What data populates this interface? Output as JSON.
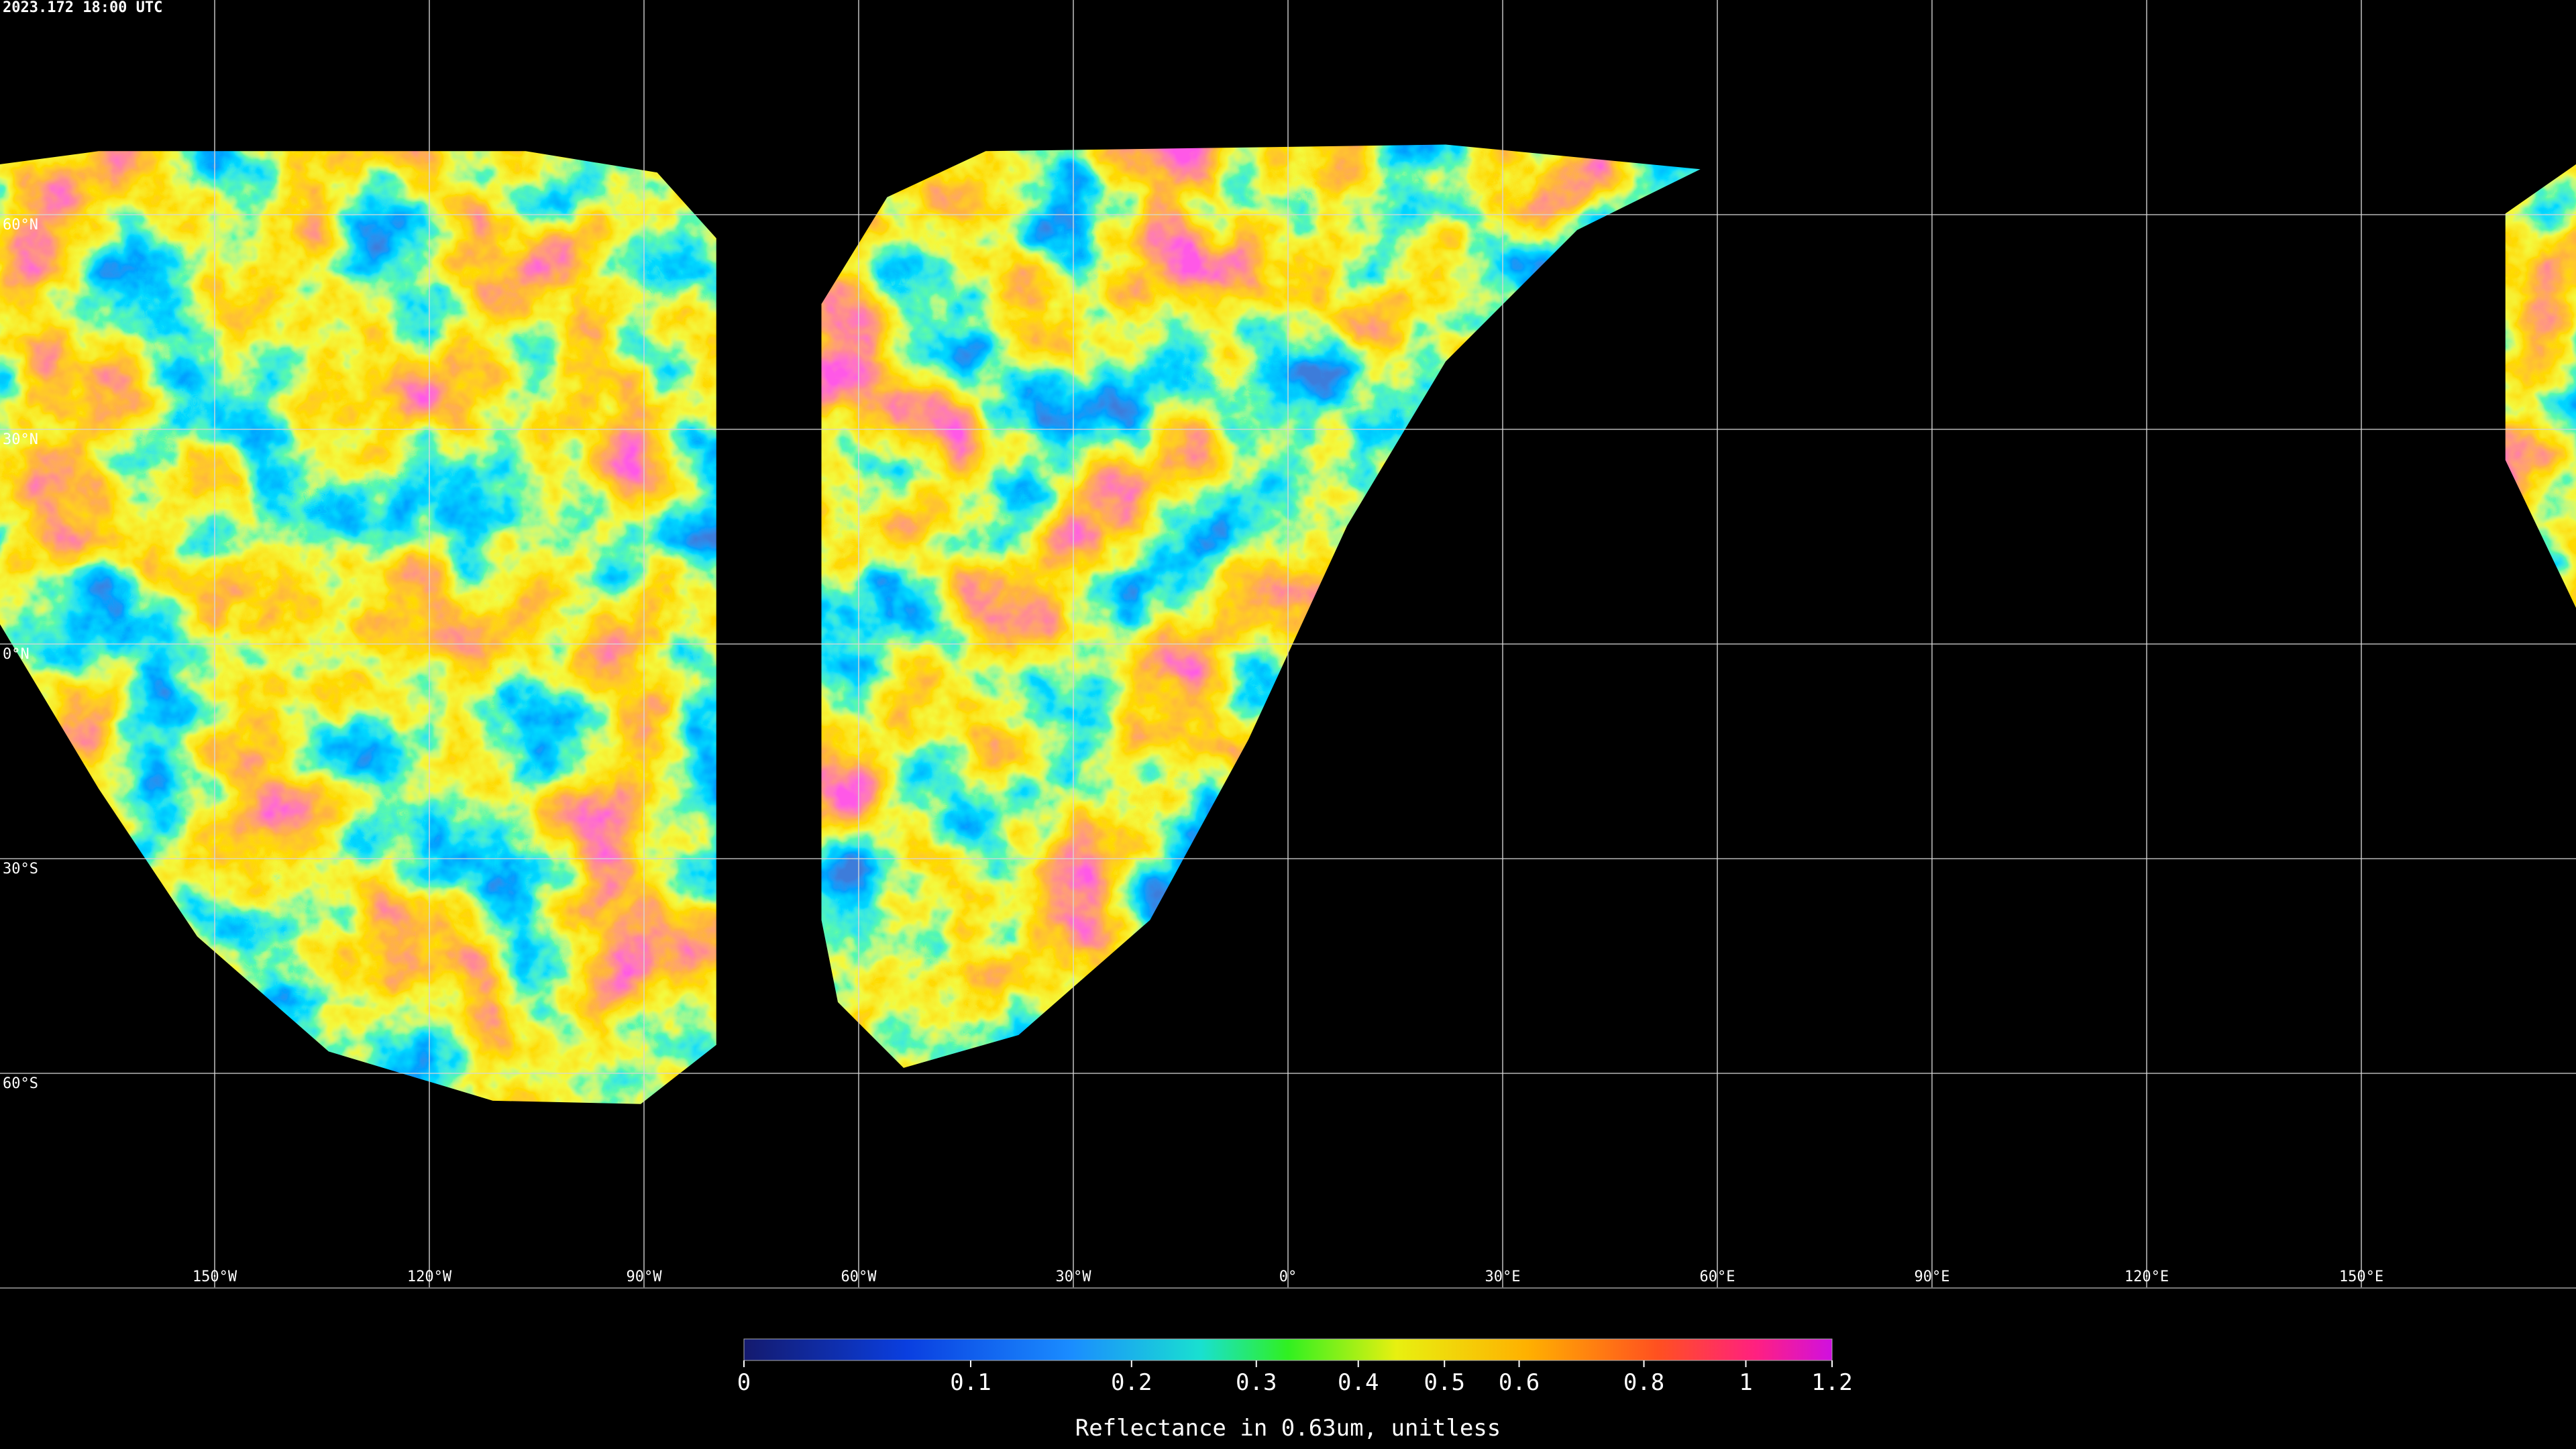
{
  "timestamp": "2023.172 18:00 UTC",
  "map": {
    "lat_lines": [
      {
        "value": 60,
        "label": "60°N"
      },
      {
        "value": 30,
        "label": "30°N"
      },
      {
        "value": 0,
        "label": "0°N"
      },
      {
        "value": -30,
        "label": "30°S"
      },
      {
        "value": -60,
        "label": "60°S"
      }
    ],
    "lon_lines": [
      {
        "value": -150,
        "label": "150°W"
      },
      {
        "value": -120,
        "label": "120°W"
      },
      {
        "value": -90,
        "label": "90°W"
      },
      {
        "value": -60,
        "label": "60°W"
      },
      {
        "value": -30,
        "label": "30°W"
      },
      {
        "value": 0,
        "label": "0°"
      },
      {
        "value": 30,
        "label": "30°E"
      },
      {
        "value": 60,
        "label": "60°E"
      },
      {
        "value": 90,
        "label": "90°E"
      },
      {
        "value": 120,
        "label": "120°E"
      },
      {
        "value": 150,
        "label": "150°E"
      }
    ]
  },
  "colorbar": {
    "lim": [
      0,
      1.2
    ],
    "ticks": [
      0,
      0.1,
      0.2,
      0.3,
      0.4,
      0.5,
      0.6,
      0.8,
      1,
      1.2
    ],
    "label": "Reflectance in 0.63um, unitless"
  }
}
